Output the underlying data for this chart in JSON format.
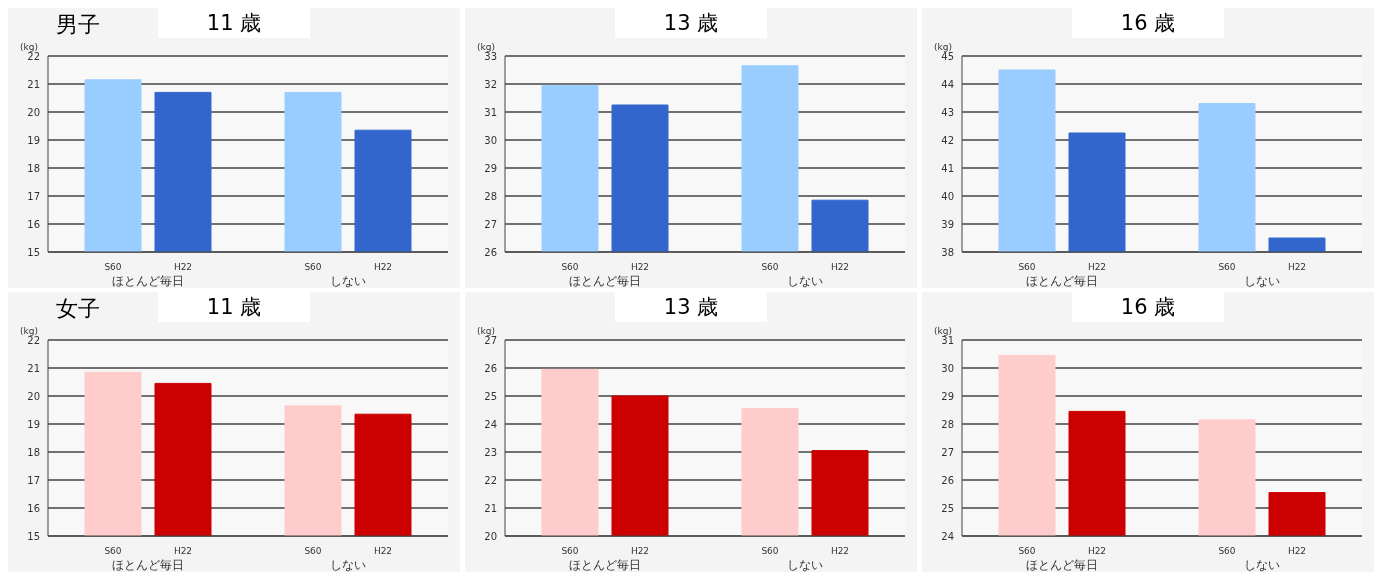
{
  "chart_data": [
    {
      "type": "bar",
      "title": "11 歳",
      "subtitle": "男子",
      "ylabel": "(kg)",
      "categories": [
        "ほとんど毎日",
        "しない"
      ],
      "series": [
        {
          "name": "S60",
          "color": "#99ccff",
          "values": [
            21.15,
            20.7
          ]
        },
        {
          "name": "H22",
          "color": "#3366cc",
          "values": [
            20.7,
            19.35
          ]
        }
      ],
      "ylim": [
        15,
        22
      ],
      "yticks": [
        15,
        16,
        17,
        18,
        19,
        20,
        21,
        22
      ],
      "grid": "y"
    },
    {
      "type": "bar",
      "title": "13 歳",
      "ylabel": "(kg)",
      "categories": [
        "ほとんど毎日",
        "しない"
      ],
      "series": [
        {
          "name": "S60",
          "color": "#99ccff",
          "values": [
            31.95,
            32.65
          ]
        },
        {
          "name": "H22",
          "color": "#3366cc",
          "values": [
            31.25,
            27.85
          ]
        }
      ],
      "ylim": [
        26,
        33
      ],
      "yticks": [
        26,
        27,
        28,
        29,
        30,
        31,
        32,
        33
      ],
      "grid": "y"
    },
    {
      "type": "bar",
      "title": "16 歳",
      "ylabel": "(kg)",
      "categories": [
        "ほとんど毎日",
        "しない"
      ],
      "series": [
        {
          "name": "S60",
          "color": "#99ccff",
          "values": [
            44.5,
            43.3
          ]
        },
        {
          "name": "H22",
          "color": "#3366cc",
          "values": [
            42.25,
            38.5
          ]
        }
      ],
      "ylim": [
        38,
        45
      ],
      "yticks": [
        38,
        39,
        40,
        41,
        42,
        43,
        44,
        45
      ],
      "grid": "y"
    },
    {
      "type": "bar",
      "title": "11 歳",
      "subtitle": "女子",
      "ylabel": "(kg)",
      "categories": [
        "ほとんど毎日",
        "しない"
      ],
      "series": [
        {
          "name": "S60",
          "color": "#ffcccc",
          "values": [
            20.85,
            19.65
          ]
        },
        {
          "name": "H22",
          "color": "#cc0000",
          "values": [
            20.45,
            19.35
          ]
        }
      ],
      "ylim": [
        15,
        22
      ],
      "yticks": [
        15,
        16,
        17,
        18,
        19,
        20,
        21,
        22
      ],
      "grid": "y"
    },
    {
      "type": "bar",
      "title": "13 歳",
      "ylabel": "(kg)",
      "categories": [
        "ほとんど毎日",
        "しない"
      ],
      "series": [
        {
          "name": "S60",
          "color": "#ffcccc",
          "values": [
            25.95,
            24.55
          ]
        },
        {
          "name": "H22",
          "color": "#cc0000",
          "values": [
            25.0,
            23.05
          ]
        }
      ],
      "ylim": [
        20,
        27
      ],
      "yticks": [
        20,
        21,
        22,
        23,
        24,
        25,
        26,
        27
      ],
      "grid": "y"
    },
    {
      "type": "bar",
      "title": "16 歳",
      "ylabel": "(kg)",
      "categories": [
        "ほとんど毎日",
        "しない"
      ],
      "series": [
        {
          "name": "S60",
          "color": "#ffcccc",
          "values": [
            30.45,
            28.15
          ]
        },
        {
          "name": "H22",
          "color": "#cc0000",
          "values": [
            28.45,
            25.55
          ]
        }
      ],
      "ylim": [
        24,
        31
      ],
      "yticks": [
        24,
        25,
        26,
        27,
        28,
        29,
        30,
        31
      ],
      "grid": "y"
    }
  ]
}
